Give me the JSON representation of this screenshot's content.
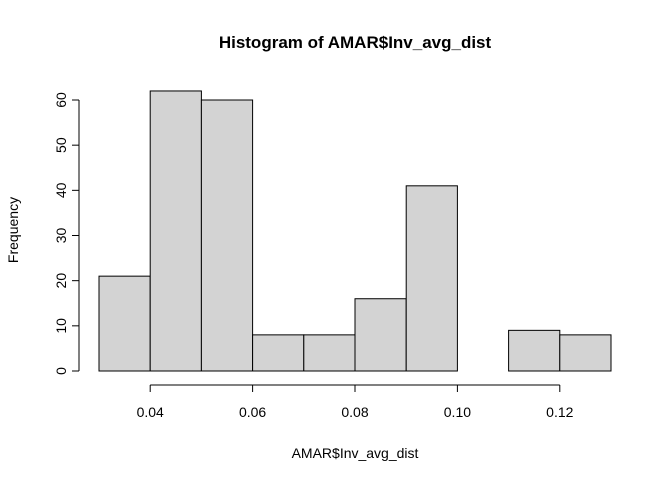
{
  "chart_data": {
    "type": "bar",
    "title": "Histogram of AMAR$Inv_avg_dist",
    "xlabel": "AMAR$Inv_avg_dist",
    "ylabel": "Frequency",
    "bin_edges": [
      0.03,
      0.04,
      0.05,
      0.06,
      0.07,
      0.08,
      0.09,
      0.1,
      0.11,
      0.12,
      0.13
    ],
    "values": [
      21,
      62,
      60,
      8,
      8,
      16,
      41,
      0,
      9,
      8
    ],
    "xlim": [
      0.03,
      0.13
    ],
    "ylim": [
      0,
      62
    ],
    "x_ticks": [
      0.04,
      0.06,
      0.08,
      0.1,
      0.12
    ],
    "x_tick_labels": [
      "0.04",
      "0.06",
      "0.08",
      "0.10",
      "0.12"
    ],
    "y_ticks": [
      0,
      10,
      20,
      30,
      40,
      50,
      60
    ],
    "y_tick_labels": [
      "0",
      "10",
      "20",
      "30",
      "40",
      "50",
      "60"
    ],
    "bar_fill": "#d3d3d3",
    "bar_stroke": "#000000",
    "grid": false
  }
}
